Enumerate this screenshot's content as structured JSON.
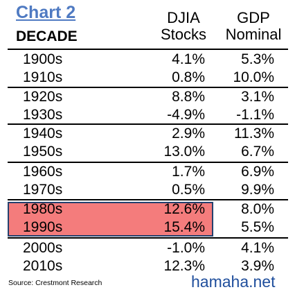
{
  "chart_data": {
    "type": "table",
    "title": "Chart 2",
    "columns": [
      "DECADE",
      "DJIA Stocks",
      "GDP Nominal"
    ],
    "headers": {
      "decade": "DECADE",
      "djia_line1": "DJIA",
      "djia_line2": "Stocks",
      "gdp_line1": "GDP",
      "gdp_line2": "Nominal"
    },
    "rows": [
      {
        "decade": "1900s",
        "djia": "4.1%",
        "gdp": "5.3%"
      },
      {
        "decade": "1910s",
        "djia": "0.8%",
        "gdp": "10.0%"
      },
      {
        "decade": "1920s",
        "djia": "8.8%",
        "gdp": "3.1%"
      },
      {
        "decade": "1930s",
        "djia": "-4.9%",
        "gdp": "-1.1%"
      },
      {
        "decade": "1940s",
        "djia": "2.9%",
        "gdp": "11.3%"
      },
      {
        "decade": "1950s",
        "djia": "13.0%",
        "gdp": "6.7%"
      },
      {
        "decade": "1960s",
        "djia": "1.7%",
        "gdp": "6.9%"
      },
      {
        "decade": "1970s",
        "djia": "0.5%",
        "gdp": "9.9%"
      },
      {
        "decade": "1980s",
        "djia": "12.6%",
        "gdp": "8.0%"
      },
      {
        "decade": "1990s",
        "djia": "15.4%",
        "gdp": "5.5%"
      },
      {
        "decade": "2000s",
        "djia": "-1.0%",
        "gdp": "4.1%"
      },
      {
        "decade": "2010s",
        "djia": "12.3%",
        "gdp": "3.9%"
      }
    ],
    "highlighted_decades": [
      "1980s",
      "1990s"
    ],
    "highlight_color": "#f47c7c",
    "highlight_border_color": "#24416e",
    "title_color": "#4f7ac2"
  },
  "source": "Source: Crestmont Research",
  "watermark": "hamaha.net"
}
